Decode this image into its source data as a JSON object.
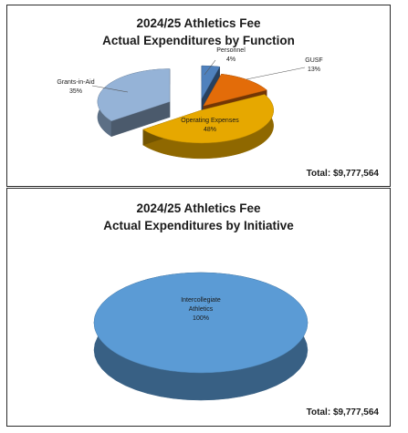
{
  "chart_data": [
    {
      "type": "pie",
      "title_line1": "2024/25 Athletics Fee",
      "title_line2": "Actual Expenditures by Function",
      "total_label": "Total:",
      "total_value": "$9,777,564",
      "slices": [
        {
          "name": "Personnel",
          "pct_label": "4%",
          "value": 4,
          "color": "#4f81bd"
        },
        {
          "name": "GUSF",
          "pct_label": "13%",
          "value": 13,
          "color": "#e36c09"
        },
        {
          "name": "Operating Expenses",
          "pct_label": "48%",
          "value": 48,
          "color": "#e6a800"
        },
        {
          "name": "Grants-in-Aid",
          "pct_label": "35%",
          "value": 35,
          "color": "#95b3d7"
        }
      ]
    },
    {
      "type": "pie",
      "title_line1": "2024/25 Athletics Fee",
      "title_line2": "Actual Expenditures by Initiative",
      "total_label": "Total:",
      "total_value": "$9,777,564",
      "slices": [
        {
          "name_line1": "Intercollegiate",
          "name_line2": "Athletics",
          "pct_label": "100%",
          "value": 100,
          "color": "#5b9bd5"
        }
      ]
    }
  ]
}
